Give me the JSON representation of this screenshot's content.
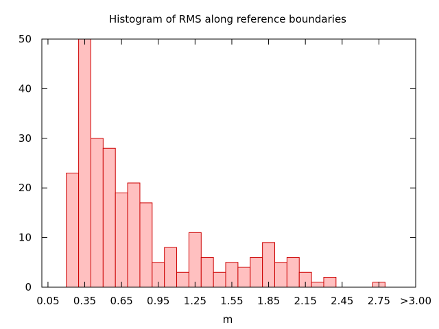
{
  "chart_data": {
    "type": "bar",
    "title": "Histogram of RMS along reference boundaries",
    "xlabel": "m",
    "ylabel": "",
    "bin_width": 0.1,
    "x_range": [
      0.0,
      3.05
    ],
    "ylim": [
      0,
      50
    ],
    "grid": false,
    "legend": "none",
    "y_ticks": [
      0,
      10,
      20,
      30,
      40,
      50
    ],
    "x_ticks": [
      {
        "value": 0.05,
        "label": "0.05"
      },
      {
        "value": 0.35,
        "label": "0.35"
      },
      {
        "value": 0.65,
        "label": "0.65"
      },
      {
        "value": 0.95,
        "label": "0.95"
      },
      {
        "value": 1.25,
        "label": "1.25"
      },
      {
        "value": 1.55,
        "label": "1.55"
      },
      {
        "value": 1.85,
        "label": "1.85"
      },
      {
        "value": 2.15,
        "label": "2.15"
      },
      {
        "value": 2.45,
        "label": "2.45"
      },
      {
        "value": 2.75,
        "label": "2.75"
      },
      {
        "value": 3.05,
        "label": ">3.00"
      }
    ],
    "bins": [
      {
        "center": 0.25,
        "value": 23
      },
      {
        "center": 0.35,
        "value": 50
      },
      {
        "center": 0.45,
        "value": 30
      },
      {
        "center": 0.55,
        "value": 28
      },
      {
        "center": 0.65,
        "value": 19
      },
      {
        "center": 0.75,
        "value": 21
      },
      {
        "center": 0.85,
        "value": 17
      },
      {
        "center": 0.95,
        "value": 5
      },
      {
        "center": 1.05,
        "value": 8
      },
      {
        "center": 1.15,
        "value": 3
      },
      {
        "center": 1.25,
        "value": 11
      },
      {
        "center": 1.35,
        "value": 6
      },
      {
        "center": 1.45,
        "value": 3
      },
      {
        "center": 1.55,
        "value": 5
      },
      {
        "center": 1.65,
        "value": 4
      },
      {
        "center": 1.75,
        "value": 6
      },
      {
        "center": 1.85,
        "value": 9
      },
      {
        "center": 1.95,
        "value": 5
      },
      {
        "center": 2.05,
        "value": 6
      },
      {
        "center": 2.15,
        "value": 3
      },
      {
        "center": 2.25,
        "value": 1
      },
      {
        "center": 2.35,
        "value": 2
      },
      {
        "center": 2.45,
        "value": 0
      },
      {
        "center": 2.55,
        "value": 0
      },
      {
        "center": 2.65,
        "value": 0
      },
      {
        "center": 2.75,
        "value": 1
      },
      {
        "center": 2.85,
        "value": 0
      },
      {
        "center": 2.95,
        "value": 0
      }
    ],
    "colors": {
      "bar_fill": "#ffc0c0",
      "bar_stroke": "#cc0000",
      "axis": "#000000"
    }
  }
}
